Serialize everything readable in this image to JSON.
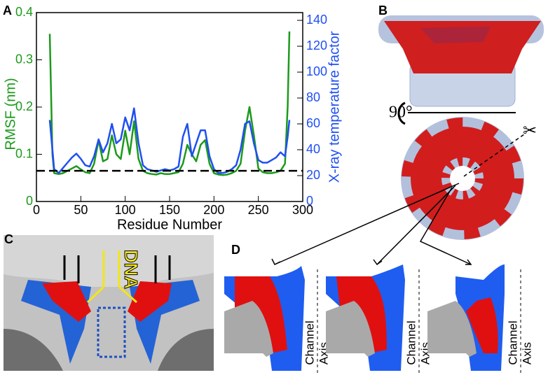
{
  "chart_data": {
    "type": "line",
    "xlabel": "Residue Number",
    "ylabel": "RMSF (nm)",
    "y2label": "X-ray temperature factor",
    "x": [
      15,
      18,
      20,
      25,
      30,
      35,
      40,
      45,
      50,
      55,
      60,
      65,
      70,
      75,
      80,
      85,
      90,
      95,
      100,
      105,
      110,
      115,
      120,
      125,
      130,
      135,
      140,
      145,
      150,
      155,
      160,
      165,
      170,
      175,
      180,
      185,
      190,
      195,
      200,
      205,
      210,
      215,
      220,
      225,
      230,
      235,
      240,
      245,
      250,
      255,
      260,
      265,
      270,
      275,
      280,
      283,
      285
    ],
    "series": [
      {
        "color": "#1c9a1c",
        "axis": "y",
        "values": [
          0.355,
          0.1,
          0.06,
          0.058,
          0.06,
          0.065,
          0.07,
          0.075,
          0.068,
          0.062,
          0.06,
          0.08,
          0.13,
          0.085,
          0.09,
          0.14,
          0.1,
          0.09,
          0.15,
          0.1,
          0.17,
          0.09,
          0.065,
          0.06,
          0.058,
          0.057,
          0.06,
          0.058,
          0.058,
          0.06,
          0.062,
          0.08,
          0.12,
          0.1,
          0.085,
          0.12,
          0.13,
          0.08,
          0.06,
          0.057,
          0.056,
          0.057,
          0.06,
          0.065,
          0.08,
          0.15,
          0.2,
          0.14,
          0.07,
          0.062,
          0.06,
          0.06,
          0.062,
          0.065,
          0.08,
          0.2,
          0.36
        ]
      },
      {
        "color": "#1f4ff2",
        "axis": "y2",
        "values": [
          63,
          40,
          25,
          22,
          26,
          30,
          34,
          37,
          33,
          28,
          27,
          35,
          48,
          38,
          45,
          60,
          45,
          48,
          65,
          55,
          72,
          45,
          28,
          25,
          24,
          23,
          24,
          25,
          24,
          25,
          27,
          50,
          60,
          35,
          45,
          55,
          55,
          35,
          25,
          22,
          22,
          23,
          25,
          28,
          40,
          60,
          62,
          45,
          32,
          30,
          30,
          32,
          34,
          38,
          35,
          50,
          63
        ]
      }
    ],
    "reference_line": 0.065,
    "xlim": [
      0,
      300
    ],
    "xticks": [
      0,
      50,
      100,
      150,
      200,
      250,
      300
    ],
    "ylim": [
      0,
      0.4
    ],
    "yticks": [
      0,
      0.1,
      0.2,
      0.3,
      0.4
    ],
    "y2lim": [
      0,
      146
    ],
    "y2ticks": [
      0,
      20,
      40,
      60,
      80,
      100,
      120,
      140
    ]
  },
  "figure": {
    "panel_labels": [
      "A",
      "B",
      "C",
      "D"
    ],
    "rotation_label": "90°",
    "dna_label": "DNA",
    "channel_axis_labels": [
      [
        "Channel",
        "Axis"
      ],
      [
        "Channel",
        "Axis"
      ],
      [
        "Channel",
        "Axis"
      ]
    ]
  }
}
